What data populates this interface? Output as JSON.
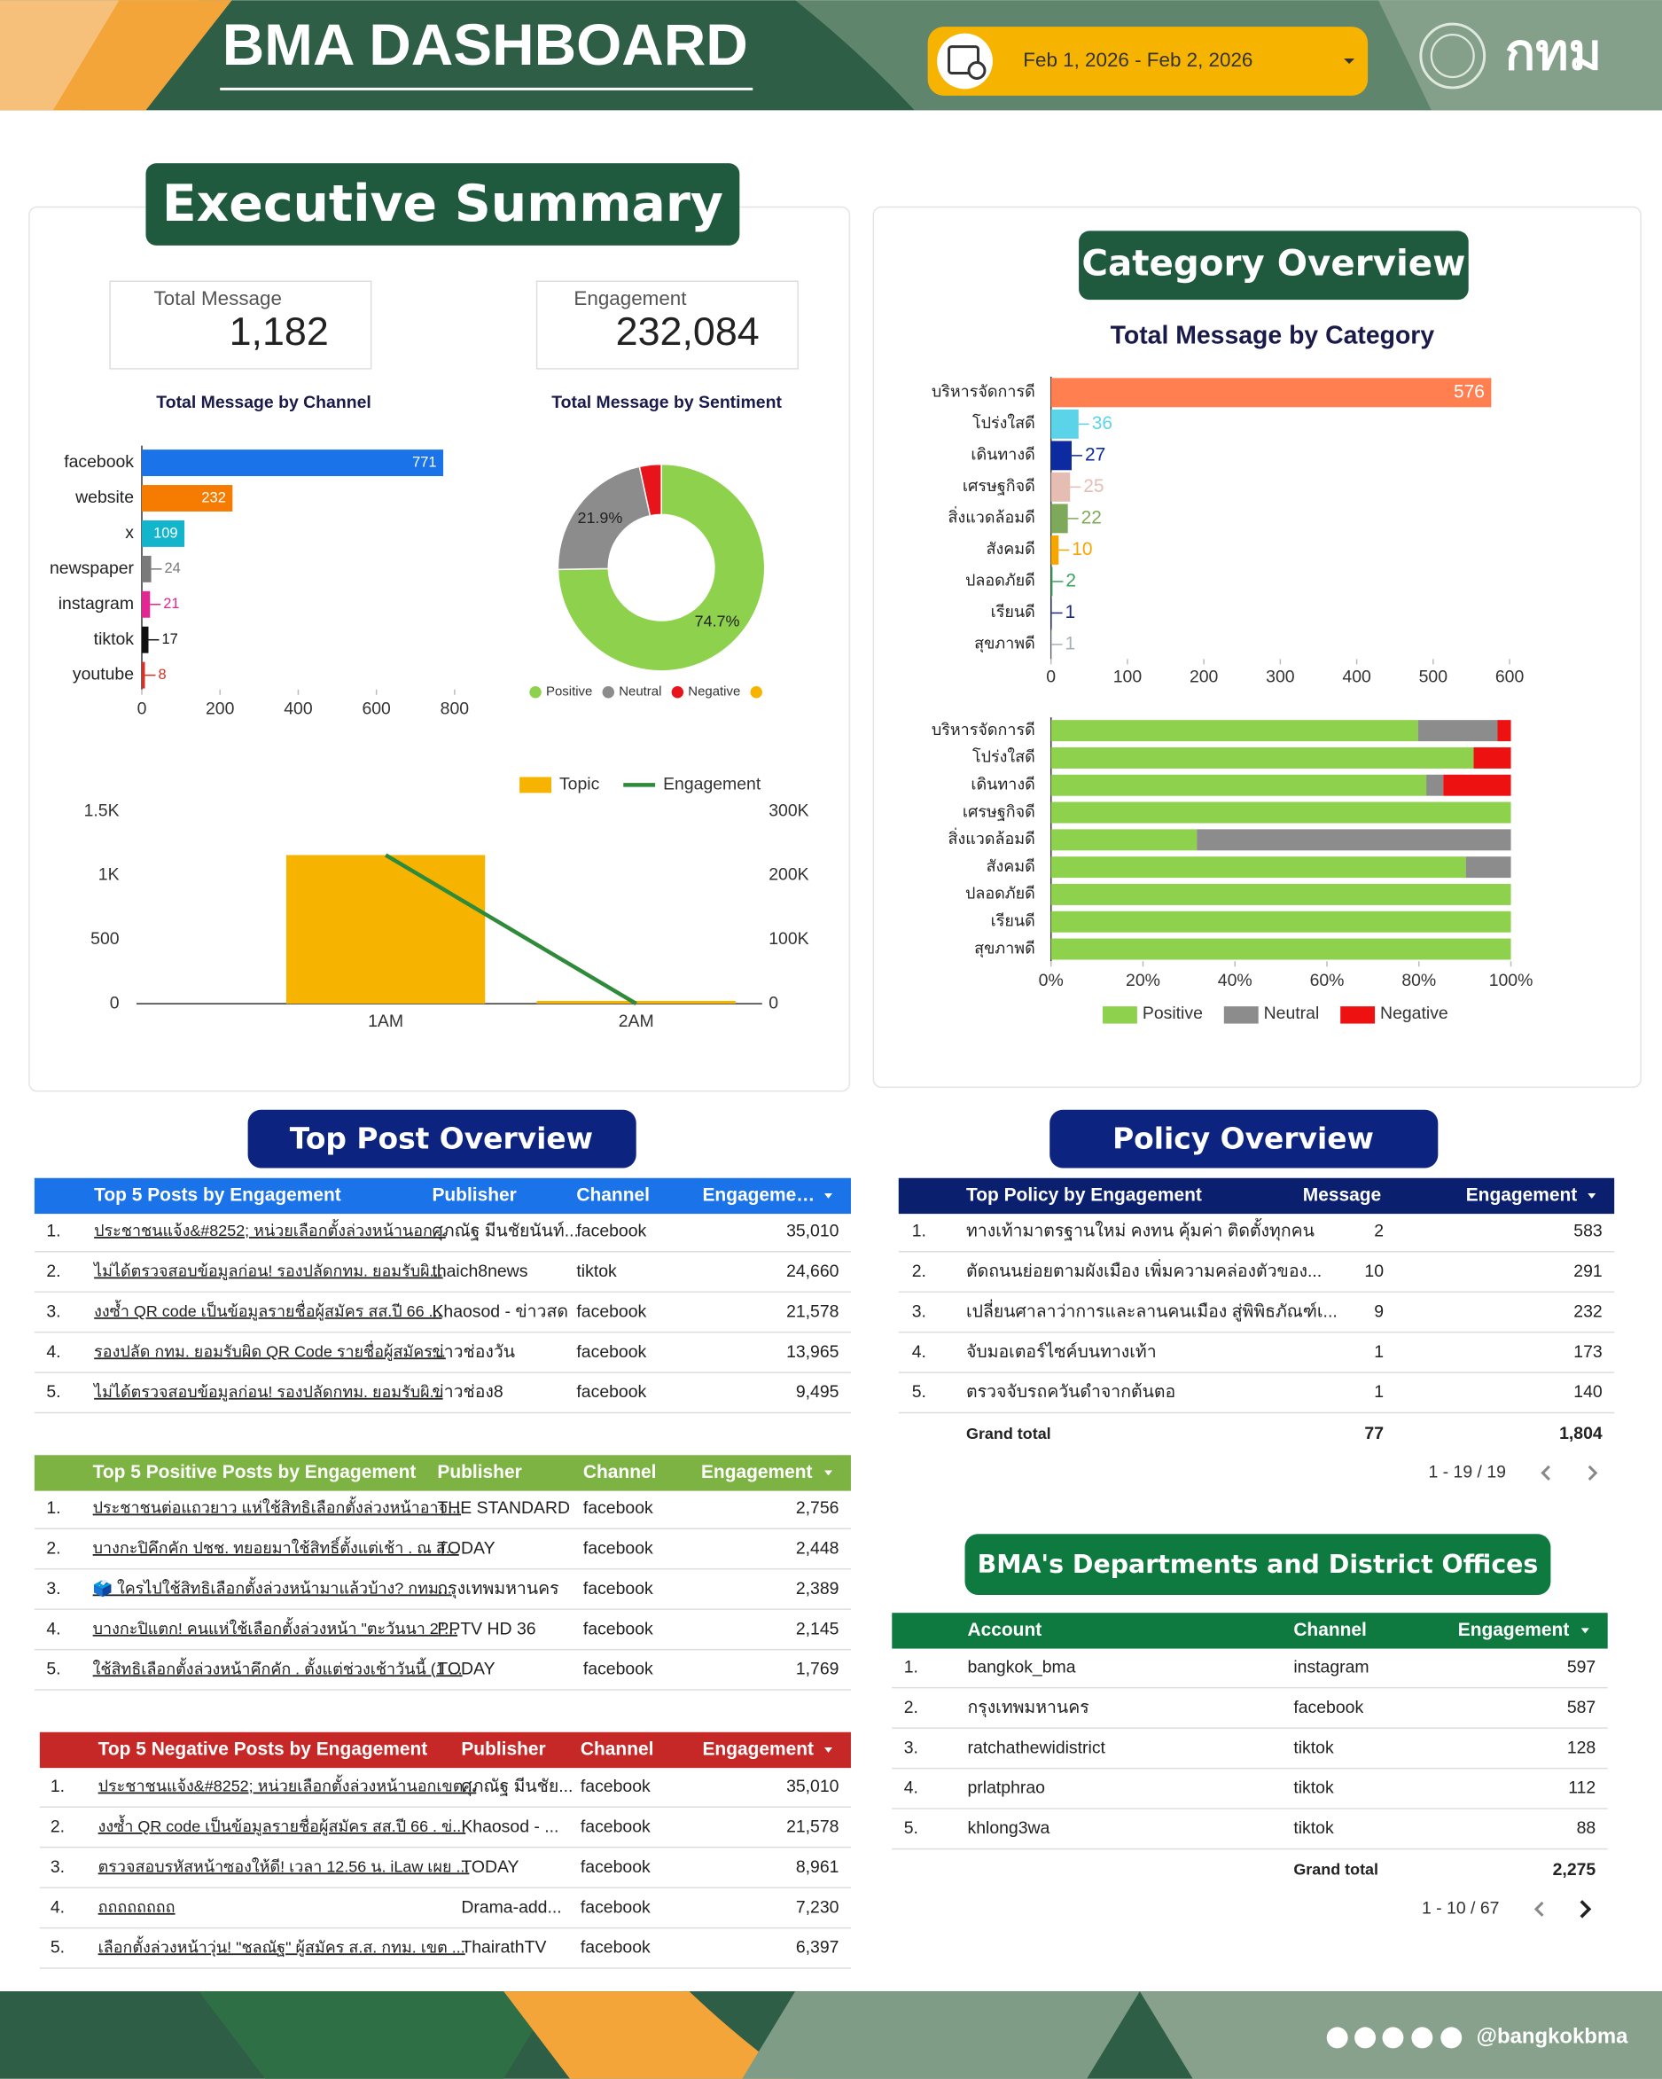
{
  "header": {
    "title": "BMA DASHBOARD",
    "date_range": "Feb 1, 2026 - Feb 2, 2026",
    "logo_text": "กทม"
  },
  "sections": {
    "executive_summary": "Executive Summary",
    "category_overview": "Category Overview",
    "top_post_overview": "Top Post Overview",
    "policy_overview": "Policy Overview",
    "departments": "BMA's Departments and District Offices"
  },
  "kpis": [
    {
      "label": "Total Message",
      "value": "1,182"
    },
    {
      "label": "Engagement",
      "value": "232,084"
    }
  ],
  "chart_data": [
    {
      "type": "bar",
      "orientation": "horizontal",
      "title": "Total Message by Channel",
      "categories": [
        "facebook",
        "website",
        "x",
        "newspaper",
        "instagram",
        "tiktok",
        "youtube"
      ],
      "values": [
        771,
        232,
        109,
        24,
        21,
        17,
        8
      ],
      "colors": [
        "#1a73e8",
        "#f57c00",
        "#12b5cb",
        "#7a7a7a",
        "#e52592",
        "#111111",
        "#d93025"
      ],
      "xlim": [
        0,
        800
      ],
      "xticks": [
        0,
        200,
        400,
        600,
        800
      ]
    },
    {
      "type": "pie",
      "donut": true,
      "title": "Total Message by Sentiment",
      "categories": [
        "Positive",
        "Neutral",
        "Negative",
        null
      ],
      "values": [
        74.7,
        21.9,
        3.4,
        0
      ],
      "value_labels": [
        "74.7%",
        "21.9%",
        null,
        null
      ],
      "colors": [
        "#8ed14d",
        "#8c8c8c",
        "#e8141c",
        "#f6b400"
      ]
    },
    {
      "type": "combo",
      "categories": [
        "1AM",
        "2AM"
      ],
      "series": [
        {
          "name": "Topic",
          "type": "bar",
          "color": "#f6b400",
          "values": [
            1160,
            22
          ]
        },
        {
          "name": "Engagement",
          "type": "line",
          "axis": "y2",
          "color": "#2f8a3a",
          "values": [
            232000,
            100
          ]
        }
      ],
      "ylim": [
        0,
        1500
      ],
      "yticks": [
        0,
        500,
        {
          "value": 1000,
          "label": "1K"
        },
        {
          "value": 1500,
          "label": "1.5K"
        }
      ],
      "y2lim": [
        0,
        300000
      ],
      "y2ticks": [
        0,
        {
          "value": 100000,
          "label": "100K"
        },
        {
          "value": 200000,
          "label": "200K"
        },
        {
          "value": 300000,
          "label": "300K"
        }
      ]
    },
    {
      "type": "bar",
      "orientation": "horizontal",
      "title": "Total Message by Category",
      "categories": [
        "บริหารจัดการดี",
        "โปร่งใสดี",
        "เดินทางดี",
        "เศรษฐกิจดี",
        "สิ่งแวดล้อมดี",
        "สังคมดี",
        "ปลอดภัยดี",
        "เรียนดี",
        "สุขภาพดี"
      ],
      "values": [
        576,
        36,
        27,
        25,
        22,
        10,
        2,
        1,
        1
      ],
      "colors": [
        "#ff7f50",
        "#5bd3e8",
        "#0d2ba0",
        "#e6bdb3",
        "#7ea85a",
        "#f7a600",
        "#3aa35b",
        "#1b2a7a",
        "#a7b0b8"
      ],
      "xlim": [
        0,
        600
      ],
      "xticks": [
        0,
        100,
        200,
        300,
        400,
        500,
        600
      ]
    },
    {
      "type": "stacked_bar",
      "orientation": "horizontal",
      "categories": [
        "บริหารจัดการดี",
        "โปร่งใสดี",
        "เดินทางดี",
        "เศรษฐกิจดี",
        "สิ่งแวดล้อมดี",
        "สังคมดี",
        "ปลอดภัยดี",
        "เรียนดี",
        "สุขภาพดี"
      ],
      "series": [
        {
          "name": "Positive",
          "color": "#8ed14d",
          "values": [
            79.8,
            91.9,
            81.6,
            100,
            31.7,
            90.2,
            100,
            100,
            100
          ]
        },
        {
          "name": "Neutral",
          "color": "#8c8c8c",
          "values": [
            17.3,
            0,
            3.7,
            0,
            68.3,
            9.8,
            0,
            0,
            0
          ]
        },
        {
          "name": "Negative",
          "color": "#ee1111",
          "values": [
            2.9,
            8.1,
            14.7,
            0,
            0,
            0,
            0,
            0,
            0
          ]
        }
      ],
      "xlim": [
        0,
        100
      ],
      "xticks": [
        {
          "value": 0,
          "label": "0%"
        },
        {
          "value": 20,
          "label": "20%"
        },
        {
          "value": 40,
          "label": "40%"
        },
        {
          "value": 60,
          "label": "60%"
        },
        {
          "value": 80,
          "label": "80%"
        },
        {
          "value": 100,
          "label": "100%"
        }
      ]
    }
  ],
  "tables": {
    "top_posts": {
      "header": [
        "Top 5 Posts by Engagement",
        "Publisher",
        "Channel",
        "Engageme…"
      ],
      "rows": [
        [
          "1.",
          "ประชาชนแจ้ง&#8252; หน่วยเลือกตั้งล่วงหน้านอก...",
          "ศุภณัฐ มีนชัยนันท์...",
          "facebook",
          "35,010"
        ],
        [
          "2.",
          "ไม่ได้ตรวจสอบข้อมูลก่อน! รองปลัดกทม. ยอมรับผิ...",
          "thaich8news",
          "tiktok",
          "24,660"
        ],
        [
          "3.",
          "งงซ้ำ QR code เป็นข้อมูลรายชื่อผู้สมัคร สส.ปี 66 ...",
          "Khaosod - ข่าวสด",
          "facebook",
          "21,578"
        ],
        [
          "4.",
          "รองปลัด กทม. ยอมรับผิด QR Code รายชื่อผู้สมัคร...",
          "ข่าวช่องวัน",
          "facebook",
          "13,965"
        ],
        [
          "5.",
          "ไม่ได้ตรวจสอบข้อมูลก่อน! รองปลัดกทม. ยอมรับผิ...",
          "ข่าวช่อง8",
          "facebook",
          "9,495"
        ]
      ]
    },
    "positive_posts": {
      "header": [
        "Top 5 Positive Posts by Engagement",
        "Publisher",
        "Channel",
        "Engagement"
      ],
      "rows": [
        [
          "1.",
          "ประชาชนต่อแถวยาว แห่ใช้สิทธิเลือกตั้งล่วงหน้าอาจ...",
          "THE STANDARD",
          "facebook",
          "2,756"
        ],
        [
          "2.",
          "บางกะปิคึกคัก ปชช. ทยอยมาใช้สิทธิ์ตั้งแต่เช้า . ณ ส่...",
          "TODAY",
          "facebook",
          "2,448"
        ],
        [
          "3.",
          "🗳️ ใครไปใช้สิทธิเลือกตั้งล่วงหน้ามาแล้วบ้าง? กทม...",
          "กรุงเทพมหานคร",
          "facebook",
          "2,389"
        ],
        [
          "4.",
          "บางกะปิแตก! คนแห่ใช้เลือกตั้งล่วงหน้า \"ตะวันนา 2\"...",
          "PPTV HD 36",
          "facebook",
          "2,145"
        ],
        [
          "5.",
          "ใช้สิทธิเลือกตั้งล่วงหน้าคึกคัก . ตั้งแต่ช่วงเช้าวันนี้ (1 ...",
          "TODAY",
          "facebook",
          "1,769"
        ]
      ]
    },
    "negative_posts": {
      "header": [
        "Top 5 Negative Posts by Engagement",
        "Publisher",
        "Channel",
        "Engagement"
      ],
      "rows": [
        [
          "1.",
          "ประชาชนแจ้ง&#8252; หน่วยเลือกตั้งล่วงหน้านอกเขต...",
          "ศุภณัฐ มีนชัย...",
          "facebook",
          "35,010"
        ],
        [
          "2.",
          "งงซ้ำ QR code เป็นข้อมูลรายชื่อผู้สมัคร สส.ปี 66 . ข่...",
          "Khaosod - ...",
          "facebook",
          "21,578"
        ],
        [
          "3.",
          "ตรวจสอบรหัสหน้าซองให้ดี! เวลา 12.56 น. iLaw เผย ...",
          "TODAY",
          "facebook",
          "8,961"
        ],
        [
          "4.",
          "ถถถถถถถถ",
          "Drama-add...",
          "facebook",
          "7,230"
        ],
        [
          "5.",
          "เลือกตั้งล่วงหน้าวุ่น! \"ชลณัฐ\" ผู้สมัคร ส.ส. กทม. เขต ...",
          "ThairathTV",
          "facebook",
          "6,397"
        ]
      ]
    },
    "policy": {
      "header": [
        "Top Policy by Engagement",
        "Message",
        "Engagement"
      ],
      "rows": [
        [
          "1.",
          "ทางเท้ามาตรฐานใหม่ คงทน คุ้มค่า ติดตั้งทุกคน",
          "2",
          "583"
        ],
        [
          "2.",
          "ตัดถนนย่อยตามผังเมือง เพิ่มความคล่องตัวของ...",
          "10",
          "291"
        ],
        [
          "3.",
          "เปลี่ยนศาลาว่าการและลานคนเมือง สู่พิพิธภัณฑ์เ...",
          "9",
          "232"
        ],
        [
          "4.",
          "จับมอเตอร์ไซค์บนทางเท้า",
          "1",
          "173"
        ],
        [
          "5.",
          "ตรวจจับรถควันดำจากต้นตอ",
          "1",
          "140"
        ]
      ],
      "grand_total": [
        "Grand total",
        "77",
        "1,804"
      ],
      "pagination": "1 - 19 / 19"
    },
    "accounts": {
      "header": [
        "Account",
        "Channel",
        "Engagement"
      ],
      "rows": [
        [
          "1.",
          "bangkok_bma",
          "instagram",
          "597"
        ],
        [
          "2.",
          "กรุงเทพมหานคร",
          "facebook",
          "587"
        ],
        [
          "3.",
          "ratchathewidistrict",
          "tiktok",
          "128"
        ],
        [
          "4.",
          "prlatphrao",
          "tiktok",
          "112"
        ],
        [
          "5.",
          "khlong3wa",
          "tiktok",
          "88"
        ]
      ],
      "grand_total": [
        "Grand total",
        "2,275"
      ],
      "pagination": "1 - 10 / 67"
    }
  },
  "footer": {
    "handle": "@bangkokbma"
  }
}
